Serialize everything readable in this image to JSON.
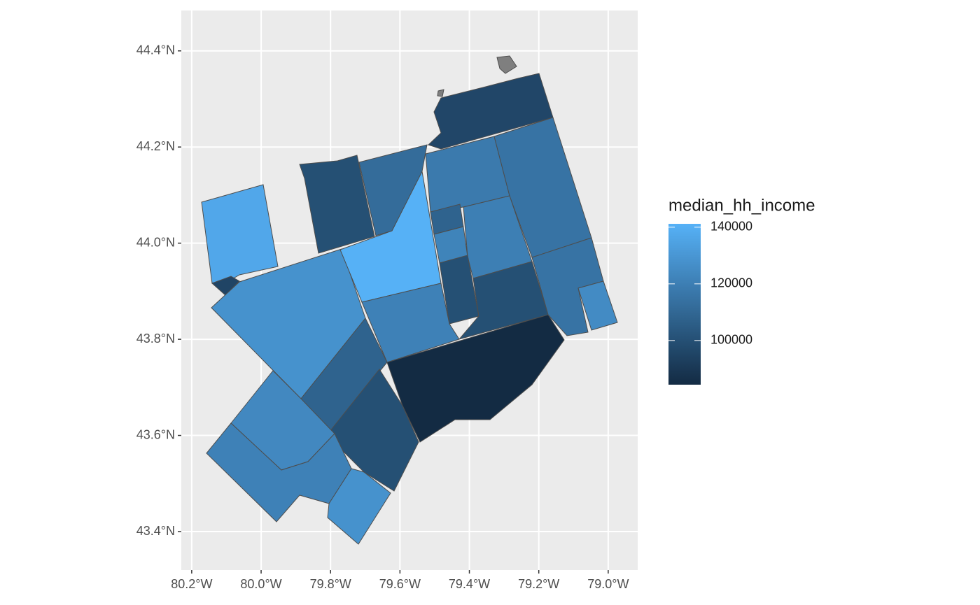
{
  "chart_data": {
    "type": "choropleth",
    "xlim": [
      -80.23,
      -78.915
    ],
    "ylim": [
      43.32,
      44.484
    ],
    "xticks": [
      {
        "value": -80.2,
        "label": "80.2°W"
      },
      {
        "value": -80.0,
        "label": "80.0°W"
      },
      {
        "value": -79.8,
        "label": "79.8°W"
      },
      {
        "value": -79.6,
        "label": "79.6°W"
      },
      {
        "value": -79.4,
        "label": "79.4°W"
      },
      {
        "value": -79.2,
        "label": "79.2°W"
      },
      {
        "value": -79.0,
        "label": "79.0°W"
      }
    ],
    "yticks": [
      {
        "value": 43.4,
        "label": "43.4°N"
      },
      {
        "value": 43.6,
        "label": "43.6°N"
      },
      {
        "value": 43.8,
        "label": "43.8°N"
      },
      {
        "value": 44.0,
        "label": "44.0°N"
      },
      {
        "value": 44.2,
        "label": "44.2°N"
      },
      {
        "value": 44.4,
        "label": "44.4°N"
      }
    ],
    "grid": true,
    "values": [
      137000,
      95000,
      128000,
      141000,
      100000,
      112000,
      96000,
      118000,
      115000,
      108000,
      122000,
      120000,
      100000,
      100000,
      115000,
      125000,
      121000,
      84500,
      108000,
      100000,
      124000,
      121000,
      128000
    ],
    "colorbar": {
      "title": "median_hh_income",
      "limits": [
        84400,
        141200
      ],
      "ticks": [
        100000,
        120000,
        140000
      ],
      "low_color": "#132B43",
      "high_color": "#56B1F7"
    }
  }
}
